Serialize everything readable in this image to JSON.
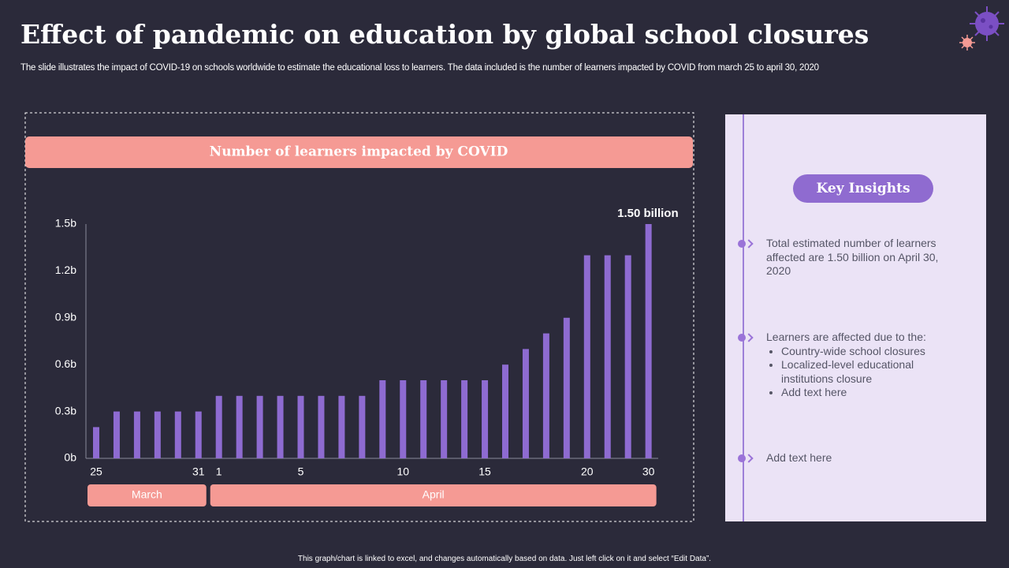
{
  "title": "Effect of pandemic on education by global school closures",
  "subtitle": "The slide illustrates the impact of COVID-19  on schools worldwide to estimate the educational loss to learners. The data included is the number of learners impacted by COVID  from march 25 to  april 30, 2020",
  "footer": "This graph/chart is linked to excel, and changes automatically based on data. Just left click on it and select “Edit Data”.",
  "chart_data": {
    "type": "bar",
    "title": "Number of learners impacted by COVID",
    "categories": [
      "25",
      null,
      null,
      null,
      null,
      "31",
      "1",
      null,
      null,
      null,
      "5",
      null,
      null,
      null,
      null,
      "10",
      null,
      null,
      null,
      "15",
      null,
      null,
      null,
      null,
      "20",
      null,
      null,
      "30"
    ],
    "values": [
      0.2,
      0.3,
      0.3,
      0.3,
      0.3,
      0.3,
      0.4,
      0.4,
      0.4,
      0.4,
      0.4,
      0.4,
      0.4,
      0.4,
      0.5,
      0.5,
      0.5,
      0.5,
      0.5,
      0.5,
      0.6,
      0.7,
      0.8,
      0.9,
      1.3,
      1.3,
      1.3,
      1.5
    ],
    "value_labels": [
      null,
      null,
      null,
      null,
      null,
      null,
      null,
      null,
      null,
      null,
      null,
      null,
      null,
      null,
      null,
      null,
      null,
      null,
      null,
      null,
      null,
      null,
      null,
      null,
      null,
      null,
      null,
      "1.50 billion"
    ],
    "color": "#8e6bd1",
    "ylim": [
      0,
      1.5
    ],
    "yticks": [
      {
        "value": 0,
        "label": "0b"
      },
      {
        "value": 0.3,
        "label": "0.3b"
      },
      {
        "value": 0.6,
        "label": "0.6b"
      },
      {
        "value": 0.9,
        "label": "0.9b"
      },
      {
        "value": 1.2,
        "label": "1.2b"
      },
      {
        "value": 1.5,
        "label": "1.5b"
      }
    ],
    "groups": [
      "March",
      "April"
    ],
    "grid": false
  },
  "insights": {
    "title": "Key Insights",
    "items": [
      {
        "text": "Total estimated number of learners affected are 1.50 billion on April 30, 2020"
      },
      {
        "text": "Learners are affected due to the:",
        "bullets": [
          "Country-wide school closures",
          "Localized-level educational institutions closure",
          "Add text here"
        ]
      },
      {
        "text": "Add text here"
      }
    ]
  }
}
